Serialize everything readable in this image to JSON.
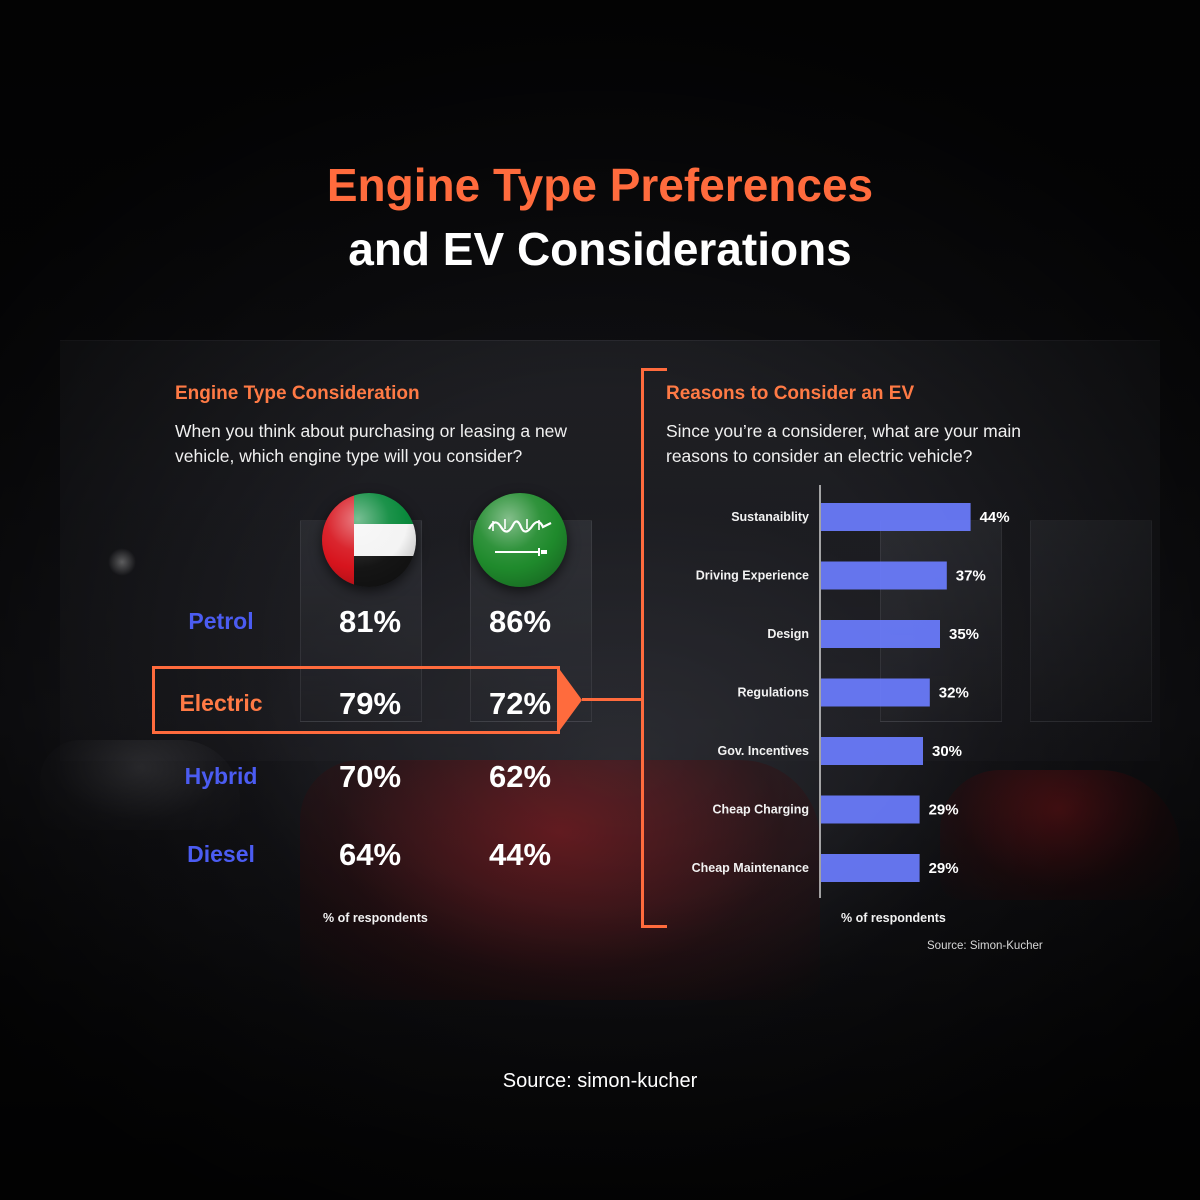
{
  "title": {
    "line1": "Engine Type Preferences",
    "line2": "and EV Considerations"
  },
  "left_panel": {
    "heading": "Engine Type Consideration",
    "question_line1": "When you think about purchasing or leasing a new",
    "question_line2": "vehicle, which engine type will you consider?",
    "flags": [
      {
        "country": "UAE",
        "icon": "uae-flag-icon"
      },
      {
        "country": "Saudi Arabia",
        "icon": "saudi-flag-icon",
        "script": "لا إله إلا الله محمد رسول الله"
      }
    ],
    "rows": [
      {
        "label": "Petrol",
        "uae": "81%",
        "ksa": "86%",
        "color": "#4b5cf2"
      },
      {
        "label": "Electric",
        "uae": "79%",
        "ksa": "72%",
        "color": "#ff7a45",
        "highlighted": true
      },
      {
        "label": "Hybrid",
        "uae": "70%",
        "ksa": "62%",
        "color": "#4b5cf2"
      },
      {
        "label": "Diesel",
        "uae": "64%",
        "ksa": "44%",
        "color": "#4b5cf2"
      }
    ],
    "footnote": "% of respondents"
  },
  "right_panel": {
    "heading": "Reasons to Consider an EV",
    "question_line1": "Since you’re a considerer, what are your main",
    "question_line2": "reasons to consider an electric vehicle?",
    "footnote": "% of respondents",
    "source": "Source: Simon-Kucher"
  },
  "chart_data": {
    "type": "bar",
    "orientation": "horizontal",
    "categories": [
      "Sustanaiblity",
      "Driving Experience",
      "Design",
      "Regulations",
      "Gov. Incentives",
      "Cheap Charging",
      "Cheap Maintenance"
    ],
    "values": [
      44,
      37,
      35,
      32,
      30,
      29,
      29
    ],
    "value_labels": [
      "44%",
      "37%",
      "35%",
      "32%",
      "30%",
      "29%",
      "29%"
    ],
    "xlim": [
      0,
      100
    ],
    "bar_color": "#6b7dff",
    "grid": false
  },
  "footer": {
    "source": "Source: simon-kucher"
  },
  "colors": {
    "accent": "#ff6b3d",
    "blue": "#4b5cf2",
    "background": "#0b0b0d"
  }
}
